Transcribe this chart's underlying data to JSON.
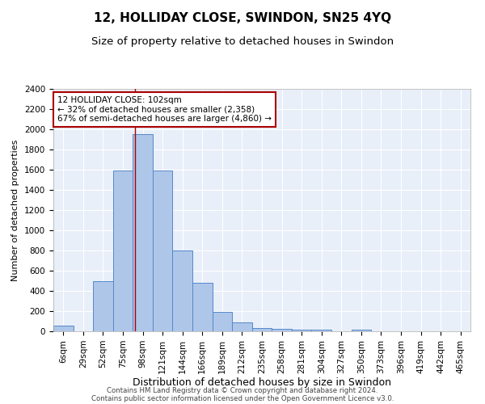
{
  "title": "12, HOLLIDAY CLOSE, SWINDON, SN25 4YQ",
  "subtitle": "Size of property relative to detached houses in Swindon",
  "xlabel": "Distribution of detached houses by size in Swindon",
  "ylabel": "Number of detached properties",
  "categories": [
    "6sqm",
    "29sqm",
    "52sqm",
    "75sqm",
    "98sqm",
    "121sqm",
    "144sqm",
    "166sqm",
    "189sqm",
    "212sqm",
    "235sqm",
    "258sqm",
    "281sqm",
    "304sqm",
    "327sqm",
    "350sqm",
    "373sqm",
    "396sqm",
    "419sqm",
    "442sqm",
    "465sqm"
  ],
  "bar_heights": [
    60,
    0,
    500,
    1590,
    1950,
    1590,
    800,
    480,
    190,
    90,
    35,
    25,
    15,
    15,
    0,
    20,
    0,
    0,
    0,
    0,
    0
  ],
  "bar_color": "#aec6e8",
  "bar_edge_color": "#5588cc",
  "vline_color": "#aa0000",
  "vline_pos": 3.62,
  "annotation_text": "12 HOLLIDAY CLOSE: 102sqm\n← 32% of detached houses are smaller (2,358)\n67% of semi-detached houses are larger (4,860) →",
  "annotation_box_color": "white",
  "annotation_box_edge": "#aa0000",
  "ylim": [
    0,
    2400
  ],
  "yticks": [
    0,
    200,
    400,
    600,
    800,
    1000,
    1200,
    1400,
    1600,
    1800,
    2000,
    2200,
    2400
  ],
  "background_color": "#e8eff9",
  "grid_color": "white",
  "footer_line1": "Contains HM Land Registry data © Crown copyright and database right 2024.",
  "footer_line2": "Contains public sector information licensed under the Open Government Licence v3.0.",
  "title_fontsize": 11,
  "subtitle_fontsize": 9.5,
  "xlabel_fontsize": 9,
  "ylabel_fontsize": 8,
  "tick_fontsize": 7.5,
  "annot_fontsize": 7.5
}
